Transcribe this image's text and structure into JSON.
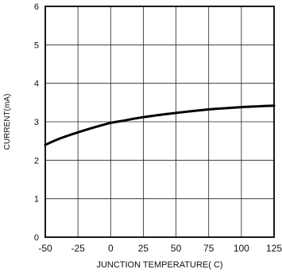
{
  "chart_data": {
    "type": "line",
    "title": "",
    "xlabel": "JUNCTION TEMPERATURE( C)",
    "ylabel": "CURRENT(mA)",
    "xlim": [
      -50,
      125
    ],
    "ylim": [
      0,
      6
    ],
    "x_ticks": [
      -50,
      -25,
      0,
      25,
      50,
      75,
      100,
      125
    ],
    "x_tick_labels": [
      "-50",
      "-25",
      "0",
      "25",
      "50",
      "75",
      "100",
      "125"
    ],
    "y_ticks": [
      0,
      1,
      2,
      3,
      4,
      5,
      6
    ],
    "y_tick_labels": [
      "0",
      "1",
      "2",
      "3",
      "4",
      "5",
      "6"
    ],
    "grid": true,
    "series": [
      {
        "x": [
          -50,
          -40,
          -30,
          -20,
          -10,
          0,
          10,
          25,
          50,
          75,
          100,
          125
        ],
        "y": [
          2.4,
          2.55,
          2.67,
          2.78,
          2.88,
          2.97,
          3.03,
          3.12,
          3.23,
          3.32,
          3.38,
          3.42
        ]
      }
    ]
  }
}
